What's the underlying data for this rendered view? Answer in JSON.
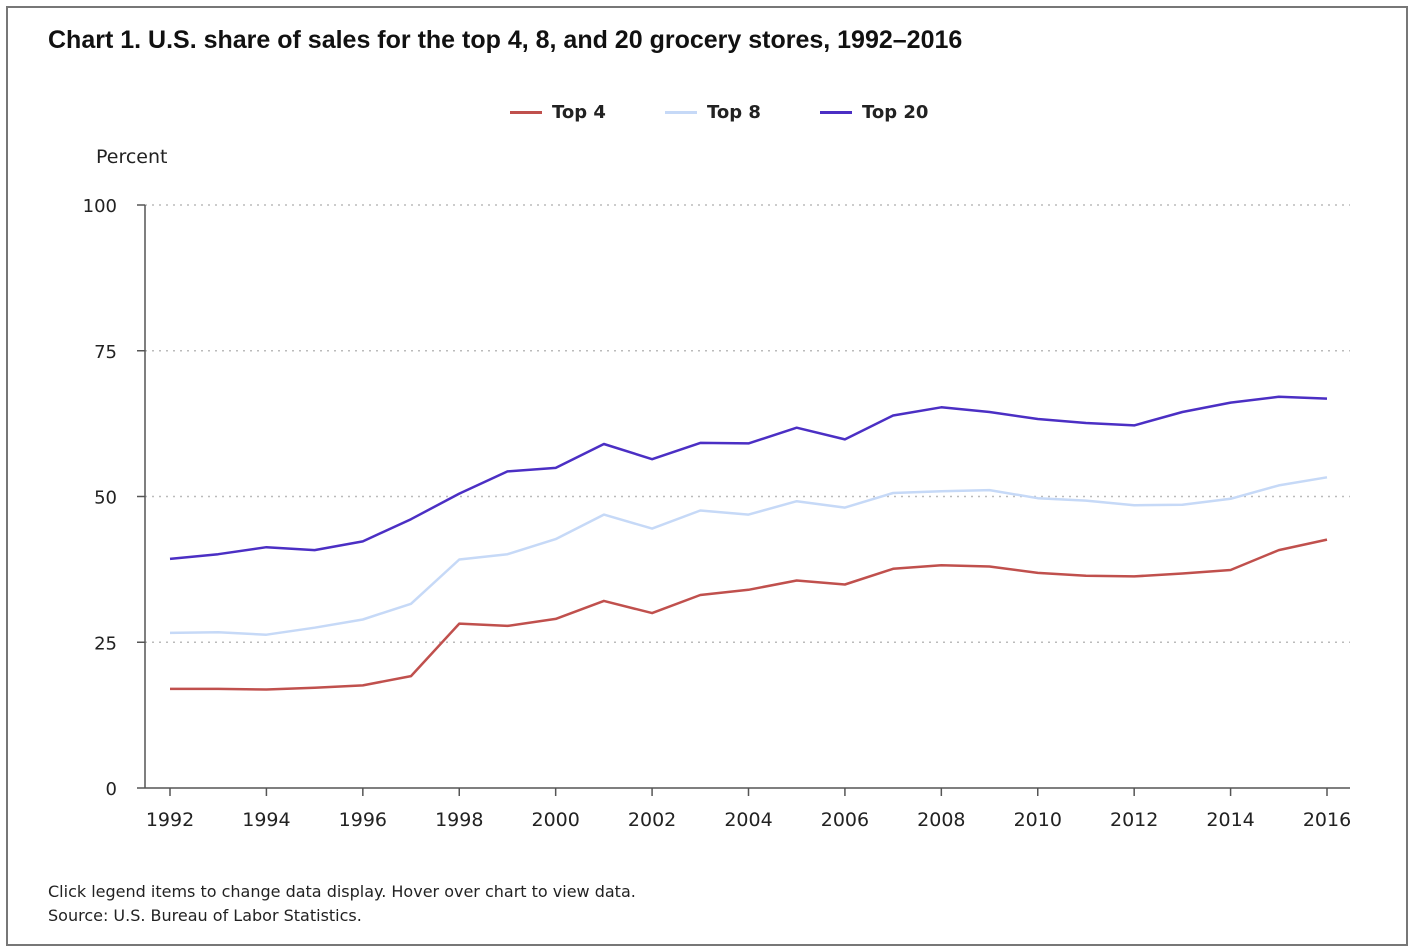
{
  "title": "Chart 1. U.S. share of sales for the top 4, 8, and 20 grocery stores, 1992–2016",
  "ylabel": "Percent",
  "footnote_1": "Click legend items to change data display. Hover over chart to view data.",
  "footnote_2": "Source: U.S. Bureau of Labor Statistics.",
  "colors": {
    "top4": "#c0504d",
    "top8": "#c6d9f7",
    "top20": "#4b2fc4",
    "axis": "#555555",
    "grid": "#bbbbbb"
  },
  "legend": [
    {
      "label": "Top 4",
      "color": "#c0504d"
    },
    {
      "label": "Top 8",
      "color": "#c6d9f7"
    },
    {
      "label": "Top 20",
      "color": "#4b2fc4"
    }
  ],
  "chart_data": {
    "type": "line",
    "x": [
      1992,
      1993,
      1994,
      1995,
      1996,
      1997,
      1998,
      1999,
      2000,
      2001,
      2002,
      2003,
      2004,
      2005,
      2006,
      2007,
      2008,
      2009,
      2010,
      2011,
      2012,
      2013,
      2014,
      2015,
      2016
    ],
    "x_ticks": [
      "1992",
      "1994",
      "1996",
      "1998",
      "2000",
      "2002",
      "2004",
      "2006",
      "2008",
      "2010",
      "2012",
      "2014",
      "2016"
    ],
    "y_ticks": [
      "0",
      "25",
      "50",
      "75",
      "100"
    ],
    "ylim": [
      0,
      100
    ],
    "xlim": [
      1992,
      2016
    ],
    "grid": "horizontal dotted",
    "legend_position": "top",
    "ylabel": "Percent",
    "series": [
      {
        "name": "Top 4",
        "color": "#c0504d",
        "values": [
          17.0,
          17.0,
          16.9,
          17.2,
          17.6,
          19.2,
          28.2,
          27.8,
          29.0,
          32.1,
          30.0,
          33.1,
          34.0,
          35.6,
          34.9,
          37.6,
          38.2,
          38.0,
          36.9,
          36.4,
          36.3,
          36.8,
          37.4,
          40.8,
          42.6
        ]
      },
      {
        "name": "Top 8",
        "color": "#c6d9f7",
        "values": [
          26.6,
          26.7,
          26.3,
          27.5,
          28.9,
          31.6,
          39.2,
          40.1,
          42.7,
          46.9,
          44.5,
          47.6,
          46.9,
          49.2,
          48.1,
          50.6,
          50.9,
          51.1,
          49.7,
          49.3,
          48.5,
          48.6,
          49.6,
          51.9,
          53.3
        ]
      },
      {
        "name": "Top 20",
        "color": "#4b2fc4",
        "values": [
          39.3,
          40.1,
          41.3,
          40.8,
          42.3,
          46.1,
          50.5,
          54.3,
          54.9,
          59.0,
          56.4,
          59.2,
          59.1,
          61.8,
          59.8,
          63.9,
          65.3,
          64.5,
          63.3,
          62.6,
          62.2,
          64.5,
          66.1,
          67.1,
          66.8
        ]
      }
    ]
  }
}
